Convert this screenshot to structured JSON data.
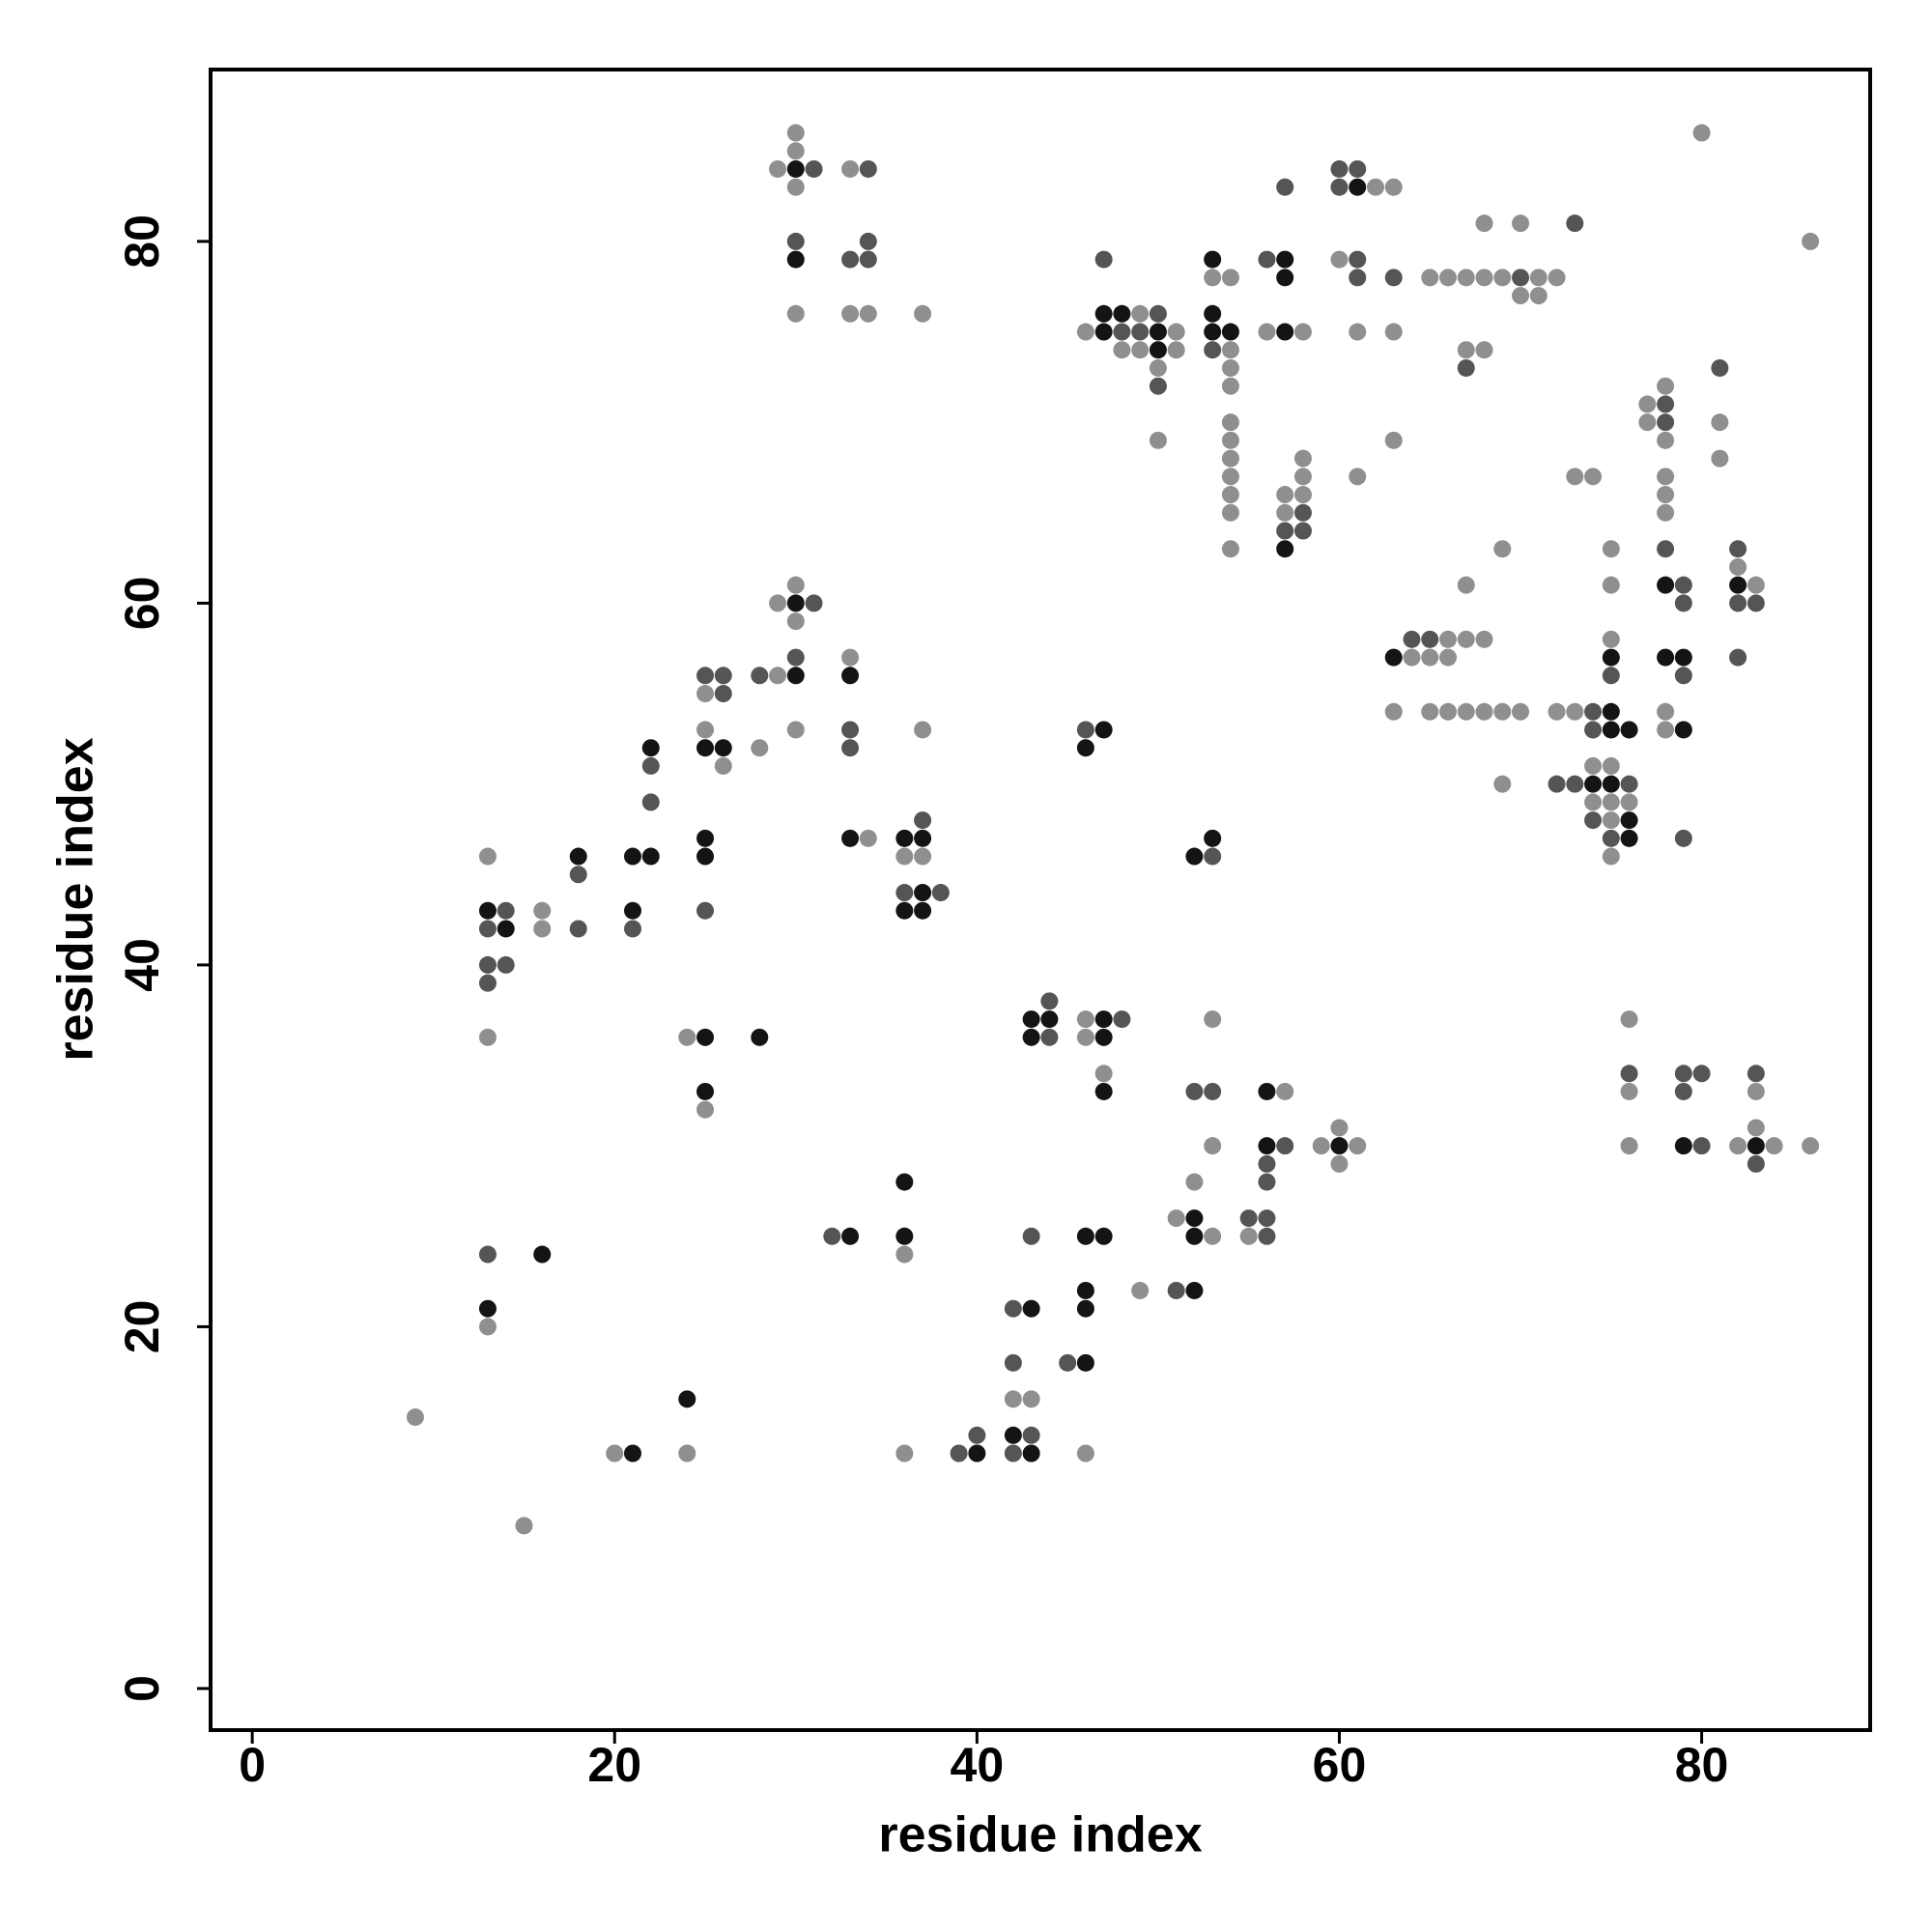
{
  "chart_data": {
    "type": "scatter",
    "xlabel": "residue index",
    "ylabel": "residue index",
    "xlim": [
      -2.3,
      89.3
    ],
    "ylim": [
      -2.3,
      89.5
    ],
    "xticks": [
      0,
      20,
      40,
      60,
      80
    ],
    "yticks": [
      0,
      20,
      40,
      60,
      80
    ],
    "series": [
      {
        "color": "#8f8f8f",
        "x": [
          30,
          80,
          30,
          29,
          33,
          30,
          62,
          63,
          68,
          70,
          86,
          60,
          53,
          54,
          65,
          66,
          67,
          68,
          69,
          71,
          72,
          70,
          71,
          30,
          33,
          34,
          37,
          49,
          46,
          51,
          56,
          58,
          61,
          63,
          48,
          49,
          51,
          54,
          67,
          68,
          50,
          54,
          54,
          78,
          77,
          54,
          77,
          81,
          50,
          54,
          63,
          78,
          54,
          58,
          81,
          54,
          58,
          61,
          73,
          74,
          78,
          54,
          57,
          58,
          78,
          54,
          57,
          78,
          54,
          69,
          75,
          82,
          30,
          67,
          75,
          83,
          29,
          30,
          66,
          67,
          68,
          75,
          33,
          64,
          65,
          66,
          29,
          25,
          63,
          65,
          66,
          67,
          68,
          69,
          70,
          72,
          73,
          78,
          25,
          30,
          37,
          78,
          28,
          26,
          74,
          75,
          69,
          74,
          75,
          76,
          75,
          34,
          13,
          36,
          37,
          75,
          16,
          16,
          46,
          53,
          76,
          13,
          24,
          46,
          47,
          57,
          76,
          83,
          25,
          60,
          83,
          53,
          59,
          61,
          76,
          82,
          84,
          86,
          60,
          52,
          51,
          53,
          55,
          36,
          49,
          13,
          42,
          43,
          9,
          20,
          24,
          36,
          46,
          15
        ],
        "values": [
          86,
          86,
          85,
          84,
          84,
          83,
          83,
          83,
          81,
          81,
          80,
          79,
          78,
          78,
          78,
          78,
          78,
          78,
          78,
          78,
          78,
          77,
          77,
          76,
          76,
          76,
          76,
          76,
          75,
          75,
          75,
          75,
          75,
          75,
          74,
          74,
          74,
          74,
          74,
          74,
          73,
          73,
          72,
          72,
          71,
          70,
          70,
          70,
          69,
          69,
          69,
          69,
          68,
          68,
          68,
          67,
          67,
          67,
          67,
          67,
          67,
          66,
          66,
          66,
          66,
          65,
          65,
          65,
          63,
          63,
          63,
          62,
          61,
          61,
          61,
          61,
          60,
          59,
          58,
          58,
          58,
          58,
          57,
          57,
          57,
          57,
          56,
          55,
          54,
          54,
          54,
          54,
          54,
          54,
          54,
          54,
          54,
          54,
          53,
          53,
          53,
          53,
          52,
          51,
          51,
          51,
          50,
          49,
          49,
          49,
          48,
          47,
          46,
          46,
          46,
          46,
          43,
          42,
          37,
          37,
          37,
          36,
          36,
          36,
          34,
          33,
          33,
          33,
          32,
          31,
          31,
          30,
          30,
          30,
          30,
          30,
          30,
          30,
          29,
          28,
          26,
          25,
          25,
          24,
          22,
          20,
          16,
          16,
          15,
          13,
          13,
          13,
          13,
          9
        ]
      },
      {
        "color": "#555555",
        "x": [
          31,
          34,
          60,
          61,
          57,
          60,
          73,
          30,
          34,
          33,
          34,
          47,
          56,
          61,
          61,
          63,
          70,
          50,
          48,
          49,
          53,
          67,
          81,
          50,
          78,
          78,
          58,
          57,
          58,
          78,
          82,
          79,
          31,
          79,
          82,
          83,
          64,
          65,
          30,
          82,
          25,
          26,
          28,
          75,
          79,
          26,
          33,
          46,
          74,
          33,
          22,
          72,
          73,
          76,
          22,
          37,
          74,
          75,
          79,
          53,
          18,
          36,
          38,
          14,
          25,
          13,
          18,
          21,
          13,
          14,
          13,
          44,
          48,
          44,
          76,
          79,
          80,
          83,
          52,
          53,
          79,
          57,
          80,
          56,
          83,
          56,
          55,
          56,
          32,
          43,
          56,
          13,
          51,
          42,
          42,
          45,
          40,
          43,
          39,
          42,
          74
        ],
        "values": [
          84,
          84,
          84,
          84,
          83,
          83,
          81,
          80,
          80,
          79,
          79,
          79,
          79,
          79,
          78,
          78,
          78,
          76,
          75,
          75,
          74,
          73,
          73,
          72,
          71,
          70,
          65,
          64,
          64,
          63,
          63,
          61,
          60,
          60,
          60,
          60,
          58,
          58,
          57,
          57,
          56,
          56,
          56,
          56,
          56,
          55,
          53,
          53,
          53,
          52,
          51,
          50,
          50,
          50,
          49,
          48,
          48,
          47,
          47,
          46,
          45,
          44,
          44,
          43,
          43,
          42,
          42,
          42,
          40,
          40,
          39,
          38,
          37,
          36,
          34,
          34,
          34,
          34,
          33,
          33,
          33,
          30,
          30,
          29,
          29,
          28,
          26,
          26,
          25,
          25,
          25,
          24,
          22,
          21,
          18,
          18,
          14,
          14,
          13,
          13,
          54
        ]
      },
      {
        "color": "#141414",
        "x": [
          30,
          61,
          30,
          53,
          57,
          57,
          47,
          48,
          53,
          47,
          50,
          53,
          54,
          57,
          50,
          57,
          78,
          82,
          30,
          63,
          75,
          78,
          79,
          30,
          33,
          75,
          47,
          75,
          76,
          79,
          22,
          25,
          26,
          46,
          74,
          75,
          76,
          25,
          33,
          36,
          37,
          53,
          76,
          18,
          21,
          22,
          25,
          52,
          37,
          13,
          21,
          36,
          37,
          14,
          43,
          44,
          47,
          25,
          28,
          43,
          47,
          25,
          47,
          56,
          56,
          60,
          79,
          83,
          36,
          52,
          33,
          36,
          46,
          47,
          52,
          16,
          46,
          52,
          13,
          43,
          46,
          46,
          24,
          42,
          21,
          40,
          43
        ],
        "values": [
          84,
          83,
          79,
          79,
          79,
          78,
          76,
          76,
          76,
          75,
          75,
          75,
          75,
          75,
          74,
          63,
          61,
          61,
          60,
          57,
          57,
          57,
          57,
          56,
          56,
          54,
          53,
          53,
          53,
          53,
          52,
          52,
          52,
          52,
          50,
          50,
          48,
          47,
          47,
          47,
          47,
          47,
          47,
          46,
          46,
          46,
          46,
          46,
          44,
          43,
          43,
          43,
          43,
          42,
          37,
          37,
          37,
          36,
          36,
          36,
          36,
          33,
          33,
          33,
          30,
          30,
          30,
          30,
          28,
          26,
          25,
          25,
          25,
          25,
          25,
          24,
          22,
          22,
          21,
          21,
          21,
          18,
          16,
          14,
          13,
          13,
          13
        ]
      }
    ]
  }
}
